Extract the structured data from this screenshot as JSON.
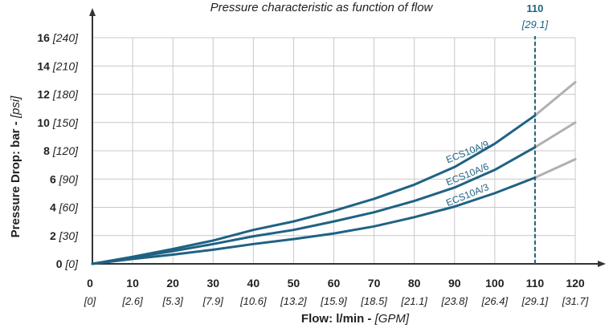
{
  "colors": {
    "curve": "#1f6283",
    "curve_extension": "#b0b0b0",
    "grid": "#c8c8c8",
    "axis": "#333333",
    "marker": "#1f6283",
    "text": "#222222"
  },
  "chart_data": {
    "type": "line",
    "title": "Pressure characteristic as function of flow",
    "xlabel_main": "Flow: l/min - ",
    "xlabel_unit": "[GPM]",
    "ylabel_main": "Pressure Drop: bar - ",
    "ylabel_unit": "[psi]",
    "xlim": [
      0,
      120
    ],
    "ylim": [
      0,
      18
    ],
    "grid": true,
    "x_ticks": [
      {
        "value": 0,
        "main": "0",
        "sub": "[0]"
      },
      {
        "value": 10,
        "main": "10",
        "sub": "[2.6]"
      },
      {
        "value": 20,
        "main": "20",
        "sub": "[5.3]"
      },
      {
        "value": 30,
        "main": "30",
        "sub": "[7.9]"
      },
      {
        "value": 40,
        "main": "40",
        "sub": "[10.6]"
      },
      {
        "value": 50,
        "main": "50",
        "sub": "[13.2]"
      },
      {
        "value": 60,
        "main": "60",
        "sub": "[15.9]"
      },
      {
        "value": 70,
        "main": "70",
        "sub": "[18.5]"
      },
      {
        "value": 80,
        "main": "80",
        "sub": "[21.1]"
      },
      {
        "value": 90,
        "main": "90",
        "sub": "[23.8]"
      },
      {
        "value": 100,
        "main": "100",
        "sub": "[26.4]"
      },
      {
        "value": 110,
        "main": "110",
        "sub": "[29.1]"
      },
      {
        "value": 120,
        "main": "120",
        "sub": "[31.7]"
      }
    ],
    "y_ticks": [
      {
        "value": 0,
        "main": "0",
        "sub": "[0]"
      },
      {
        "value": 2,
        "main": "2",
        "sub": "[30]"
      },
      {
        "value": 4,
        "main": "4",
        "sub": "[60]"
      },
      {
        "value": 6,
        "main": "6",
        "sub": "[90]"
      },
      {
        "value": 8,
        "main": "8",
        "sub": "[120]"
      },
      {
        "value": 10,
        "main": "10",
        "sub": "[150]"
      },
      {
        "value": 12,
        "main": "12",
        "sub": "[180]"
      },
      {
        "value": 14,
        "main": "14",
        "sub": "[210]"
      },
      {
        "value": 16,
        "main": "16",
        "sub": "[240]"
      }
    ],
    "marker": {
      "x": 110,
      "label_main": "110",
      "label_sub": "[29.1]"
    },
    "series": [
      {
        "name": "ECS10A/9",
        "x": [
          0,
          10,
          20,
          30,
          40,
          50,
          60,
          70,
          80,
          90,
          100,
          110
        ],
        "y": [
          0,
          0.5,
          1.05,
          1.65,
          2.4,
          3.0,
          3.75,
          4.6,
          5.6,
          6.85,
          8.5,
          10.5
        ],
        "ext_x": [
          110,
          120
        ],
        "ext_y": [
          10.5,
          12.85
        ]
      },
      {
        "name": "ECS10A/6",
        "x": [
          0,
          10,
          20,
          30,
          40,
          50,
          60,
          70,
          80,
          90,
          100,
          110
        ],
        "y": [
          0,
          0.45,
          0.9,
          1.4,
          1.95,
          2.4,
          3.0,
          3.65,
          4.45,
          5.4,
          6.65,
          8.25
        ],
        "ext_x": [
          110,
          120
        ],
        "ext_y": [
          8.25,
          10.0
        ]
      },
      {
        "name": "ECS10A/3",
        "x": [
          0,
          10,
          20,
          30,
          40,
          50,
          60,
          70,
          80,
          90,
          100,
          110
        ],
        "y": [
          0,
          0.35,
          0.65,
          1.0,
          1.4,
          1.75,
          2.15,
          2.65,
          3.3,
          4.05,
          5.0,
          6.1
        ],
        "ext_x": [
          110,
          120
        ],
        "ext_y": [
          6.1,
          7.4
        ]
      }
    ]
  }
}
